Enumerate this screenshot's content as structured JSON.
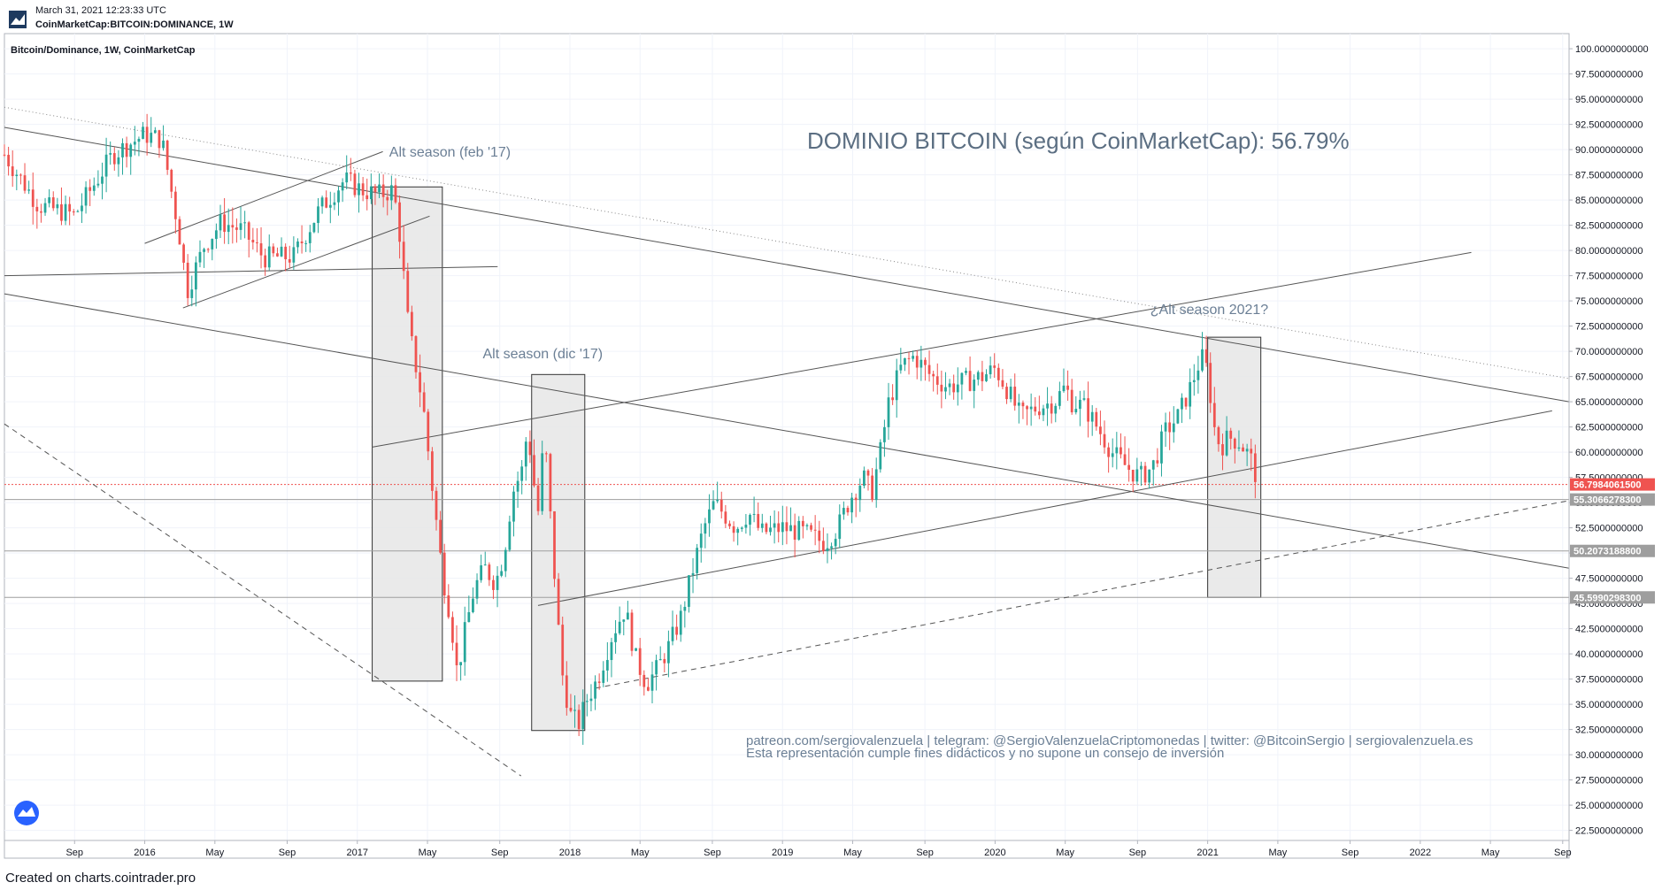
{
  "header": {
    "date": "March 31, 2021 12:23:33 UTC",
    "symbol": "CoinMarketCap:BITCOIN:DOMINANCE, 1W"
  },
  "footer": {
    "text": "Created on charts.cointrader.pro"
  },
  "chart_data": {
    "type": "candlestick",
    "title": "DOMINIO BITCOIN (según CoinMarketCap): 56.79%",
    "legend": "Bitcoin/Dominance, 1W, CoinMarketCap",
    "colors": {
      "up": "#26a69a",
      "down": "#ef5350",
      "line": "#555555",
      "box": "#e6e6e6"
    },
    "ylim": [
      21.5,
      101.5
    ],
    "y_ticks": [
      100,
      97.5,
      95,
      92.5,
      90,
      87.5,
      85,
      82.5,
      80,
      77.5,
      75,
      72.5,
      70,
      67.5,
      65,
      62.5,
      60,
      57.5,
      55,
      52.5,
      50,
      47.5,
      45,
      42.5,
      40,
      37.5,
      35,
      32.5,
      30,
      27.5,
      25,
      22.5
    ],
    "y_tick_labels": [
      "100.0000000000",
      "97.5000000000",
      "95.0000000000",
      "92.5000000000",
      "90.0000000000",
      "87.5000000000",
      "85.0000000000",
      "82.5000000000",
      "80.0000000000",
      "77.5000000000",
      "75.0000000000",
      "72.5000000000",
      "70.0000000000",
      "67.5000000000",
      "65.0000000000",
      "62.5000000000",
      "60.0000000000",
      "57.5000000000",
      "55.0000000000",
      "52.5000000000",
      "50.0000000000",
      "47.5000000000",
      "45.0000000000",
      "42.5000000000",
      "40.0000000000",
      "37.5000000000",
      "35.0000000000",
      "32.5000000000",
      "30.0000000000",
      "27.5000000000",
      "25.0000000000",
      "22.5000000000"
    ],
    "x_ticks": [
      {
        "label": "Sep",
        "x": 2015.67
      },
      {
        "label": "2016",
        "x": 2016.0
      },
      {
        "label": "May",
        "x": 2016.33
      },
      {
        "label": "Sep",
        "x": 2016.67
      },
      {
        "label": "2017",
        "x": 2017.0
      },
      {
        "label": "May",
        "x": 2017.33
      },
      {
        "label": "Sep",
        "x": 2017.67
      },
      {
        "label": "2018",
        "x": 2018.0
      },
      {
        "label": "May",
        "x": 2018.33
      },
      {
        "label": "Sep",
        "x": 2018.67
      },
      {
        "label": "2019",
        "x": 2019.0
      },
      {
        "label": "May",
        "x": 2019.33
      },
      {
        "label": "Sep",
        "x": 2019.67
      },
      {
        "label": "2020",
        "x": 2020.0
      },
      {
        "label": "May",
        "x": 2020.33
      },
      {
        "label": "Sep",
        "x": 2020.67
      },
      {
        "label": "2021",
        "x": 2021.0
      },
      {
        "label": "May",
        "x": 2021.33
      },
      {
        "label": "Sep",
        "x": 2021.67
      },
      {
        "label": "2022",
        "x": 2022.0
      },
      {
        "label": "May",
        "x": 2022.33
      },
      {
        "label": "Sep",
        "x": 2022.67
      }
    ],
    "xlim": [
      2015.34,
      2022.7
    ],
    "price_labels": [
      {
        "value": 56.79840615,
        "text": "56.7984061500",
        "bg": "#ef5350",
        "line": "dotted"
      },
      {
        "value": 55.30662783,
        "text": "55.3066278300",
        "bg": "#9e9e9e",
        "line": "solid"
      },
      {
        "value": 50.20731888,
        "text": "50.2073188800",
        "bg": "#9e9e9e",
        "line": "solid"
      },
      {
        "value": 45.59902983,
        "text": "45.5990298300",
        "bg": "#9e9e9e",
        "line": "solid"
      }
    ],
    "annotations": [
      {
        "text": "Alt season (feb '17)",
        "x": 2017.15,
        "y": 89.3
      },
      {
        "text": "Alt season (dic '17)",
        "x": 2017.59,
        "y": 69.3
      },
      {
        "text": "¿Alt season 2021?",
        "x": 2020.73,
        "y": 73.7
      }
    ],
    "boxes": [
      {
        "x1": 2017.07,
        "x2": 2017.4,
        "y1": 37.3,
        "y2": 86.3
      },
      {
        "x1": 2017.82,
        "x2": 2018.07,
        "y1": 32.4,
        "y2": 67.7
      },
      {
        "x1": 2021.0,
        "x2": 2021.25,
        "y1": 45.6,
        "y2": 71.4
      }
    ],
    "trendlines": [
      {
        "x1": 2015.34,
        "y1": 92.2,
        "x2": 2022.7,
        "y2": 65.0,
        "style": "solid"
      },
      {
        "x1": 2015.34,
        "y1": 94.2,
        "x2": 2022.7,
        "y2": 67.3,
        "style": "dotted"
      },
      {
        "x1": 2015.34,
        "y1": 75.7,
        "x2": 2022.7,
        "y2": 48.5,
        "style": "solid"
      },
      {
        "x1": 2015.34,
        "y1": 77.5,
        "x2": 2017.66,
        "y2": 78.4,
        "style": "solid"
      },
      {
        "x1": 2016.0,
        "y1": 80.7,
        "x2": 2017.12,
        "y2": 89.8,
        "style": "solid"
      },
      {
        "x1": 2016.18,
        "y1": 74.3,
        "x2": 2017.34,
        "y2": 83.4,
        "style": "solid"
      },
      {
        "x1": 2017.07,
        "y1": 60.5,
        "x2": 2022.24,
        "y2": 79.8,
        "style": "solid"
      },
      {
        "x1": 2017.85,
        "y1": 44.8,
        "x2": 2022.62,
        "y2": 64.1,
        "style": "solid"
      },
      {
        "x1": 2015.34,
        "y1": 62.8,
        "x2": 2017.77,
        "y2": 27.9,
        "style": "dashed"
      },
      {
        "x1": 2018.12,
        "y1": 36.6,
        "x2": 2022.7,
        "y2": 55.2,
        "style": "dashed"
      }
    ],
    "watermark": {
      "line1": "patreon.com/sergiovalenzuela | telegram: @SergioValenzuelaCriptomonedas | twitter: @BitcoinSergio | sergiovalenzuela.es",
      "line2": "Esta representación cumple fines didácticos y no supone un consejo de inversión"
    },
    "series_waypoints": [
      [
        2015.34,
        89.5
      ],
      [
        2015.5,
        84.5
      ],
      [
        2015.67,
        83.5
      ],
      [
        2015.85,
        89.5
      ],
      [
        2016.0,
        91.5
      ],
      [
        2016.08,
        91.0
      ],
      [
        2016.16,
        82.0
      ],
      [
        2016.2,
        76.0
      ],
      [
        2016.28,
        80.5
      ],
      [
        2016.36,
        82.8
      ],
      [
        2016.46,
        82.0
      ],
      [
        2016.56,
        79.3
      ],
      [
        2016.7,
        79.4
      ],
      [
        2016.82,
        84.0
      ],
      [
        2016.94,
        87.0
      ],
      [
        2017.02,
        86.0
      ],
      [
        2017.1,
        85.5
      ],
      [
        2017.17,
        86.0
      ],
      [
        2017.2,
        81.5
      ],
      [
        2017.24,
        72.5
      ],
      [
        2017.28,
        68.0
      ],
      [
        2017.31,
        64.5
      ],
      [
        2017.35,
        57.0
      ],
      [
        2017.4,
        48.0
      ],
      [
        2017.44,
        43.5
      ],
      [
        2017.47,
        38.0
      ],
      [
        2017.5,
        41.5
      ],
      [
        2017.55,
        46.5
      ],
      [
        2017.6,
        48.5
      ],
      [
        2017.65,
        47.0
      ],
      [
        2017.69,
        50.0
      ],
      [
        2017.73,
        56.0
      ],
      [
        2017.78,
        58.5
      ],
      [
        2017.8,
        62.5
      ],
      [
        2017.83,
        57.0
      ],
      [
        2017.85,
        54.0
      ],
      [
        2017.88,
        62.0
      ],
      [
        2017.92,
        50.0
      ],
      [
        2017.96,
        38.5
      ],
      [
        2018.0,
        34.0
      ],
      [
        2018.04,
        33.0
      ],
      [
        2018.08,
        35.5
      ],
      [
        2018.13,
        37.5
      ],
      [
        2018.2,
        42.0
      ],
      [
        2018.26,
        44.5
      ],
      [
        2018.31,
        39.5
      ],
      [
        2018.36,
        37.0
      ],
      [
        2018.41,
        38.5
      ],
      [
        2018.46,
        40.5
      ],
      [
        2018.52,
        43.5
      ],
      [
        2018.58,
        48.5
      ],
      [
        2018.63,
        52.5
      ],
      [
        2018.68,
        55.0
      ],
      [
        2018.72,
        54.0
      ],
      [
        2018.78,
        52.5
      ],
      [
        2018.84,
        54.0
      ],
      [
        2018.9,
        52.0
      ],
      [
        2019.0,
        52.5
      ],
      [
        2019.1,
        52.0
      ],
      [
        2019.2,
        51.0
      ],
      [
        2019.26,
        52.5
      ],
      [
        2019.32,
        55.5
      ],
      [
        2019.38,
        57.5
      ],
      [
        2019.42,
        56.0
      ],
      [
        2019.46,
        60.0
      ],
      [
        2019.5,
        65.0
      ],
      [
        2019.56,
        68.5
      ],
      [
        2019.62,
        69.5
      ],
      [
        2019.7,
        67.5
      ],
      [
        2019.78,
        66.5
      ],
      [
        2019.86,
        67.0
      ],
      [
        2019.94,
        67.5
      ],
      [
        2020.0,
        68.3
      ],
      [
        2020.05,
        66.5
      ],
      [
        2020.12,
        63.5
      ],
      [
        2020.2,
        64.5
      ],
      [
        2020.28,
        65.0
      ],
      [
        2020.33,
        66.5
      ],
      [
        2020.36,
        65.0
      ],
      [
        2020.42,
        64.5
      ],
      [
        2020.48,
        62.5
      ],
      [
        2020.55,
        60.0
      ],
      [
        2020.62,
        58.5
      ],
      [
        2020.68,
        57.5
      ],
      [
        2020.74,
        58.5
      ],
      [
        2020.8,
        62.0
      ],
      [
        2020.86,
        63.5
      ],
      [
        2020.92,
        66.5
      ],
      [
        2020.97,
        69.5
      ],
      [
        2021.0,
        68.0
      ],
      [
        2021.03,
        62.5
      ],
      [
        2021.06,
        60.5
      ],
      [
        2021.1,
        61.5
      ],
      [
        2021.15,
        61.0
      ],
      [
        2021.2,
        59.5
      ],
      [
        2021.24,
        56.8
      ]
    ]
  }
}
